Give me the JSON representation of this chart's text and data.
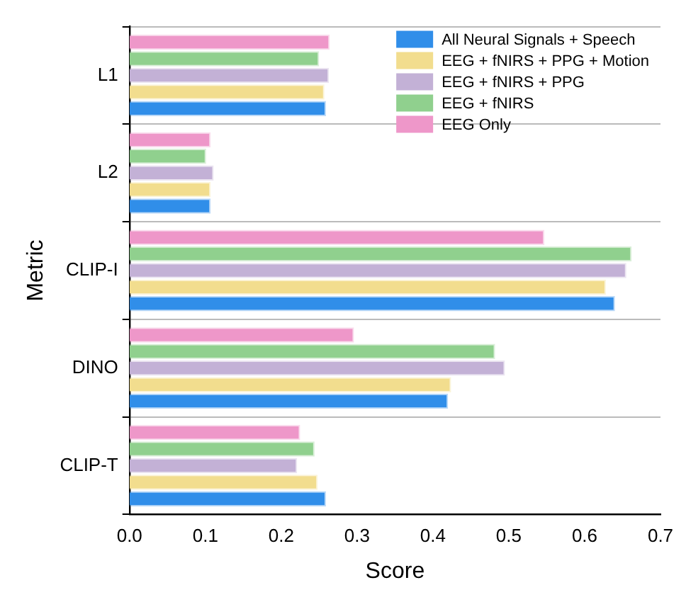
{
  "chart_data": {
    "type": "bar",
    "orientation": "horizontal",
    "xlabel": "Score",
    "ylabel": "Metric",
    "categories": [
      "L1",
      "L2",
      "CLIP-I",
      "DINO",
      "CLIP-T"
    ],
    "series": [
      {
        "name": "All Neural Signals + Speech",
        "color": "#308ee9",
        "values": [
          0.259,
          0.107,
          0.64,
          0.42,
          0.259
        ]
      },
      {
        "name": "EEG + fNIRS + PPG + Motion",
        "color": "#f2dd8e",
        "values": [
          0.257,
          0.107,
          0.628,
          0.424,
          0.248
        ]
      },
      {
        "name": "EEG + fNIRS + PPG",
        "color": "#c3b1d6",
        "values": [
          0.263,
          0.111,
          0.655,
          0.495,
          0.221
        ]
      },
      {
        "name": "EEG + fNIRS",
        "color": "#90d08e",
        "values": [
          0.25,
          0.101,
          0.662,
          0.482,
          0.244
        ]
      },
      {
        "name": "EEG Only",
        "color": "#ee97c9",
        "values": [
          0.264,
          0.107,
          0.547,
          0.296,
          0.225
        ]
      }
    ],
    "xlim": [
      0,
      0.7
    ],
    "xticks": [
      {
        "value": 0,
        "label": "0.0"
      },
      0.1,
      0.2,
      0.3,
      0.4,
      0.5,
      0.6,
      0.7
    ],
    "grid": "y",
    "legend": "top right"
  }
}
